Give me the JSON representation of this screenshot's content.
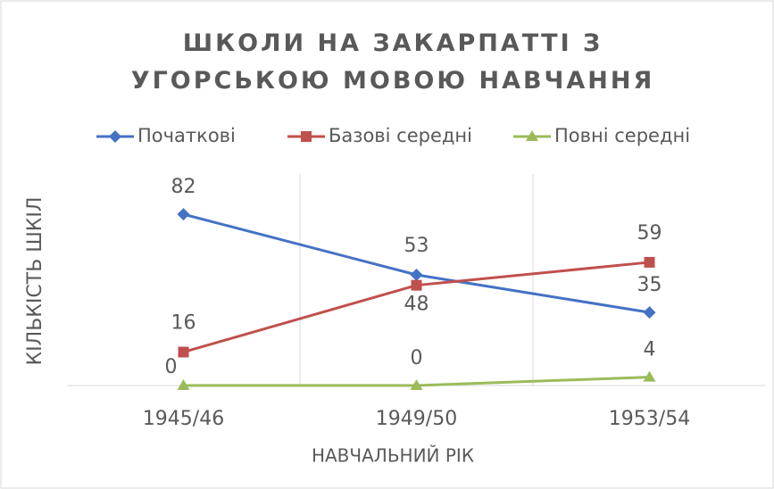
{
  "chart_data": {
    "type": "line",
    "title": "ШКОЛИ НА ЗАКАРПАТТІ З УГОРСЬКОЮ МОВОЮ НАВЧАННЯ",
    "x_label": "НАВЧАЛЬНИЙ РІК",
    "y_label": "КІЛЬКІСТЬ ШКІЛ",
    "categories": [
      "1945/46",
      "1949/50",
      "1953/54"
    ],
    "series": [
      {
        "name": "Початкові",
        "color": "#4472c4",
        "marker": "diamond",
        "values": [
          82,
          53,
          35
        ]
      },
      {
        "name": "Базові середні",
        "color": "#c0504d",
        "marker": "square",
        "values": [
          16,
          48,
          59
        ]
      },
      {
        "name": "Повні середні",
        "color": "#9bbb59",
        "marker": "triangle",
        "values": [
          0,
          0,
          4
        ]
      }
    ],
    "ylim": [
      0,
      100
    ],
    "legend": "top",
    "grid": true
  }
}
